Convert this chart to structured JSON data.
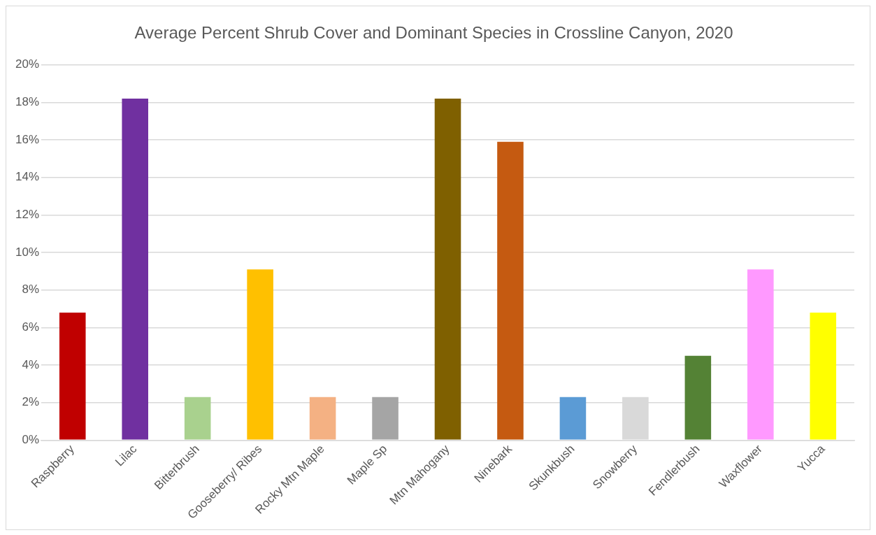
{
  "chart_data": {
    "type": "bar",
    "title": "Average Percent Shrub Cover and Dominant Species in Crossline Canyon, 2020",
    "categories": [
      "Raspberry",
      "Lilac",
      "Bitterbrush",
      "Gooseberry/ Ribes",
      "Rocky Mtn Maple",
      "Maple Sp",
      "Mtn Mahogany",
      "Ninebark",
      "Skunkbush",
      "Snowberry",
      "Fendlerbush",
      "Waxflower",
      "Yucca"
    ],
    "values": [
      6.8,
      18.2,
      2.3,
      9.1,
      2.3,
      2.3,
      18.2,
      15.9,
      2.3,
      2.3,
      4.5,
      9.1,
      6.8
    ],
    "colors": [
      "#c00000",
      "#7030a0",
      "#a9d18e",
      "#ffc000",
      "#f4b183",
      "#a5a5a5",
      "#7f6000",
      "#c55a11",
      "#5b9bd5",
      "#d9d9d9",
      "#548235",
      "#ff99ff",
      "#ffff00"
    ],
    "ylim": [
      0,
      20
    ],
    "yticks": [
      {
        "value": 0,
        "label": "0%"
      },
      {
        "value": 2,
        "label": "2%"
      },
      {
        "value": 4,
        "label": "4%"
      },
      {
        "value": 6,
        "label": "6%"
      },
      {
        "value": 8,
        "label": "8%"
      },
      {
        "value": 10,
        "label": "10%"
      },
      {
        "value": 12,
        "label": "12%"
      },
      {
        "value": 14,
        "label": "14%"
      },
      {
        "value": 16,
        "label": "16%"
      },
      {
        "value": 18,
        "label": "18%"
      },
      {
        "value": 20,
        "label": "20%"
      }
    ],
    "grid": "y"
  }
}
